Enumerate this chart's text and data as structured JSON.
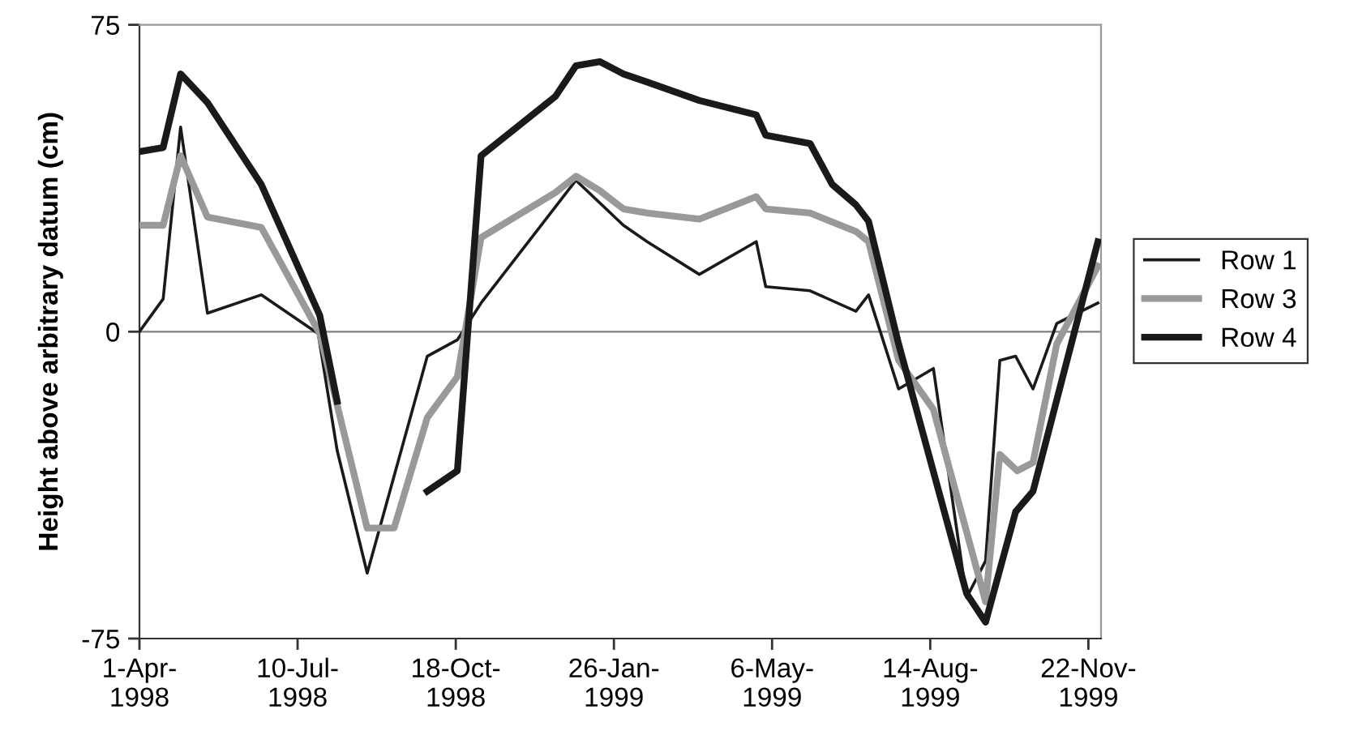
{
  "chart_data": {
    "type": "line",
    "ylabel": "Height above arbitrary datum (cm)",
    "xlim": [
      "1998-04-01",
      "1999-11-30"
    ],
    "ylim": [
      -75,
      75
    ],
    "xticks": [
      {
        "value": "1998-04-01",
        "label": "1-Apr-\n1998"
      },
      {
        "value": "1998-07-10",
        "label": "10-Jul-\n1998"
      },
      {
        "value": "1998-10-18",
        "label": "18-Oct-\n1998"
      },
      {
        "value": "1999-01-26",
        "label": "26-Jan-\n1999"
      },
      {
        "value": "1999-05-06",
        "label": "6-May-\n1999"
      },
      {
        "value": "1999-08-14",
        "label": "14-Aug-\n1999"
      },
      {
        "value": "1999-11-22",
        "label": "22-Nov-\n1999"
      }
    ],
    "yticks": [
      {
        "value": -75,
        "label": "-75"
      },
      0,
      75
    ],
    "grid": false,
    "legend": "right",
    "marker": "none",
    "line_style": "solid",
    "ref_lines": [
      {
        "axis": "y",
        "value": 0,
        "color": "#808080"
      }
    ],
    "series": [
      {
        "name": "Row 1",
        "color": "#1a1a1a",
        "x": [
          "1998-04-01",
          "1998-04-16",
          "1998-04-27",
          "1998-05-14",
          "1998-06-17",
          "1998-07-23",
          "1998-08-04",
          "1998-08-23",
          "1998-09-30",
          "1998-10-19",
          "1998-11-03",
          "1999-01-02",
          "1999-02-01",
          "1999-02-16",
          "1999-03-21",
          "1999-04-26",
          "1999-05-02",
          "1999-05-30",
          "1999-06-28",
          "1999-07-06",
          "1999-07-25",
          "1999-08-16",
          "1999-09-06",
          "1999-09-18",
          "1999-09-27",
          "1999-10-07",
          "1999-10-18",
          "1999-11-02",
          "1999-11-28"
        ],
        "values": [
          0,
          8,
          50,
          4.5,
          9,
          -0.5,
          -29,
          -59,
          -6,
          -2,
          7,
          37,
          26,
          22,
          14,
          22,
          11,
          10,
          5,
          9,
          -14,
          -9,
          -65,
          -56,
          -7,
          -6,
          -14,
          2,
          7
        ]
      },
      {
        "name": "Row 3",
        "color": "#999999",
        "x": [
          "1998-04-01",
          "1998-04-16",
          "1998-04-27",
          "1998-05-14",
          "1998-06-17",
          "1998-07-24",
          "1998-08-23",
          "1998-09-09",
          "1998-09-30",
          "1998-10-19",
          "1998-11-03",
          "1998-12-20",
          "1999-01-02",
          "1999-01-17",
          "1999-02-01",
          "1999-02-16",
          "1999-03-21",
          "1999-04-26",
          "1999-05-02",
          "1999-05-30",
          "1999-06-28",
          "1999-07-06",
          "1999-07-25",
          "1999-08-16",
          "1999-09-18",
          "1999-09-27",
          "1999-10-08",
          "1999-10-18",
          "1999-11-02",
          "1999-11-28"
        ],
        "values": [
          26,
          26,
          43,
          28,
          25.5,
          -0.5,
          -48,
          -48,
          -21,
          -11,
          23,
          34,
          38,
          34.5,
          30,
          29,
          27.5,
          33,
          30,
          29,
          24.5,
          22,
          -7,
          -19,
          -66,
          -30,
          -34,
          -32,
          -3,
          16
        ]
      },
      {
        "name": "Row 4",
        "color": "#1a1a1a",
        "x": [
          "1998-04-01",
          "1998-04-16",
          "1998-04-27",
          "1998-05-14",
          "1998-06-17",
          "1998-07-24",
          "1998-08-04",
          "1998-09-09",
          "1998-09-30",
          "1998-10-19",
          "1998-11-03",
          "1998-12-20",
          "1999-01-02",
          "1999-01-17",
          "1999-02-01",
          "1999-02-16",
          "1999-03-21",
          "1999-04-26",
          "1999-05-02",
          "1999-05-30",
          "1999-06-13",
          "1999-06-28",
          "1999-07-06",
          "1999-07-25",
          "1999-09-06",
          "1999-09-18",
          "1999-10-07",
          "1999-10-18",
          "1999-11-28"
        ],
        "values": [
          44,
          45,
          63,
          56,
          36,
          4,
          -17,
          null,
          -39,
          -34,
          43,
          57.5,
          65,
          66,
          63,
          61,
          56.5,
          53,
          48,
          46,
          36,
          31,
          27,
          -3,
          -64,
          -71,
          -44,
          -39,
          22
        ]
      }
    ]
  }
}
